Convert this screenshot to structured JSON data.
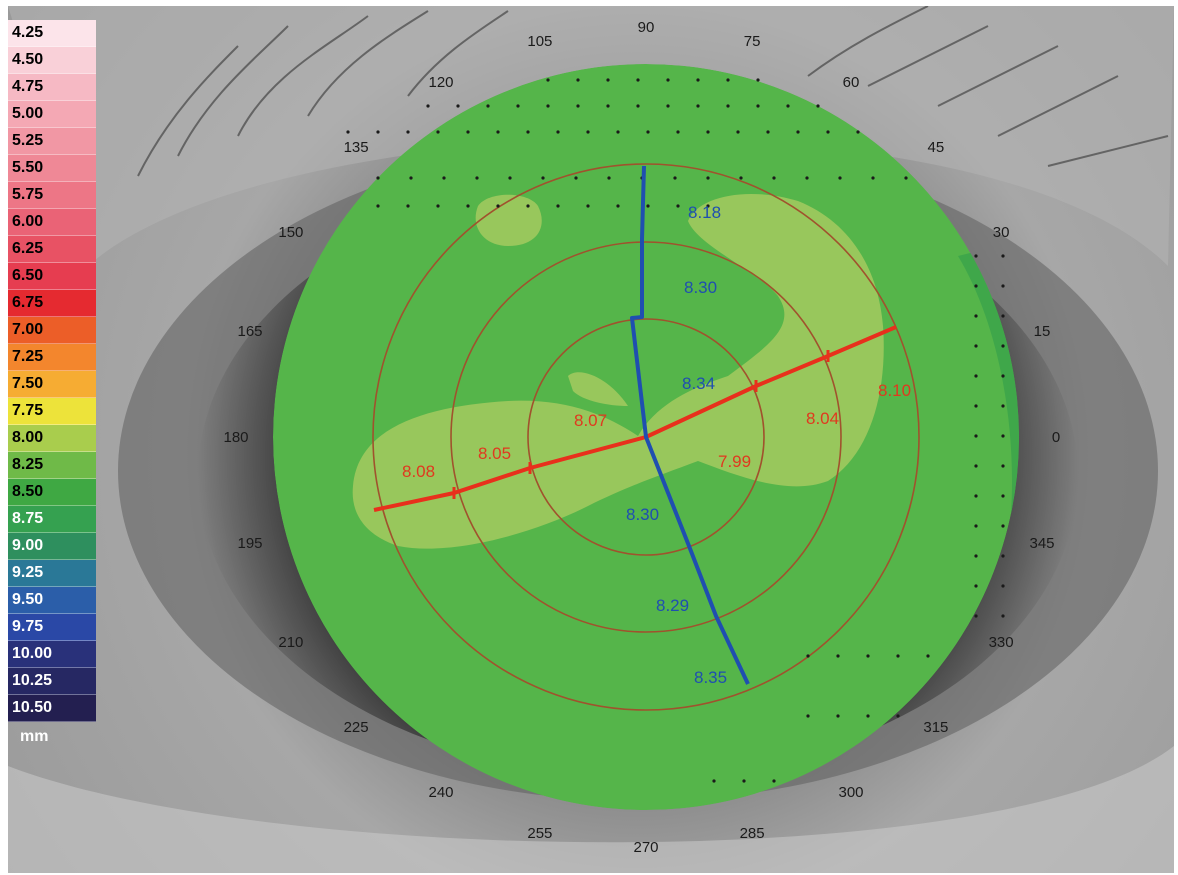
{
  "colors": {
    "map_base": "#55b54a",
    "map_light": "#98c75c",
    "map_outer": "#3fa74a",
    "ring_stroke": "#a0522d",
    "flat_meridian": "#e8301c",
    "steep_meridian": "#1f4fb0",
    "flat_value_text": "#e0391f",
    "steep_value_text": "#1f4fb0",
    "angle_label_text": "#1a1a1a"
  },
  "scale": {
    "unit": "mm",
    "items": [
      {
        "label": "4.25",
        "color": "#fce4ea",
        "text_color": "#000000"
      },
      {
        "label": "4.50",
        "color": "#f9d0d8",
        "text_color": "#000000"
      },
      {
        "label": "4.75",
        "color": "#f6b9c4",
        "text_color": "#000000"
      },
      {
        "label": "5.00",
        "color": "#f4a8b4",
        "text_color": "#000000"
      },
      {
        "label": "5.25",
        "color": "#f197a4",
        "text_color": "#000000"
      },
      {
        "label": "5.50",
        "color": "#ef8896",
        "text_color": "#000000"
      },
      {
        "label": "5.75",
        "color": "#ed7686",
        "text_color": "#000000"
      },
      {
        "label": "6.00",
        "color": "#ea6376",
        "text_color": "#000000"
      },
      {
        "label": "6.25",
        "color": "#e85264",
        "text_color": "#000000"
      },
      {
        "label": "6.50",
        "color": "#e63d50",
        "text_color": "#000000"
      },
      {
        "label": "6.75",
        "color": "#e52a30",
        "text_color": "#000000"
      },
      {
        "label": "7.00",
        "color": "#ec5e28",
        "text_color": "#000000"
      },
      {
        "label": "7.25",
        "color": "#f3862d",
        "text_color": "#000000"
      },
      {
        "label": "7.50",
        "color": "#f6ac33",
        "text_color": "#000000"
      },
      {
        "label": "7.75",
        "color": "#ede33a",
        "text_color": "#000000"
      },
      {
        "label": "8.00",
        "color": "#a9cd4d",
        "text_color": "#000000"
      },
      {
        "label": "8.25",
        "color": "#6fba48",
        "text_color": "#000000"
      },
      {
        "label": "8.50",
        "color": "#3fa843",
        "text_color": "#000000"
      },
      {
        "label": "8.75",
        "color": "#35a150",
        "text_color": "#ffffff"
      },
      {
        "label": "9.00",
        "color": "#2e8f5e",
        "text_color": "#ffffff"
      },
      {
        "label": "9.25",
        "color": "#2a7897",
        "text_color": "#ffffff"
      },
      {
        "label": "9.50",
        "color": "#2b5ea9",
        "text_color": "#ffffff"
      },
      {
        "label": "9.75",
        "color": "#2a48a6",
        "text_color": "#ffffff"
      },
      {
        "label": "10.00",
        "color": "#29317a",
        "text_color": "#ffffff"
      },
      {
        "label": "10.25",
        "color": "#262863",
        "text_color": "#ffffff"
      },
      {
        "label": "10.50",
        "color": "#231f50",
        "text_color": "#ffffff"
      }
    ]
  },
  "angle_labels": [
    "0",
    "15",
    "30",
    "45",
    "60",
    "75",
    "90",
    "105",
    "120",
    "135",
    "150",
    "165",
    "180",
    "195",
    "210",
    "225",
    "240",
    "255",
    "270",
    "285",
    "300",
    "315",
    "330",
    "345"
  ],
  "flat_meridian_values": [
    "8.08",
    "8.05",
    "8.07",
    "7.99",
    "8.04",
    "8.10"
  ],
  "steep_meridian_values": [
    "8.18",
    "8.30",
    "8.34",
    "8.30",
    "8.29",
    "8.35"
  ]
}
